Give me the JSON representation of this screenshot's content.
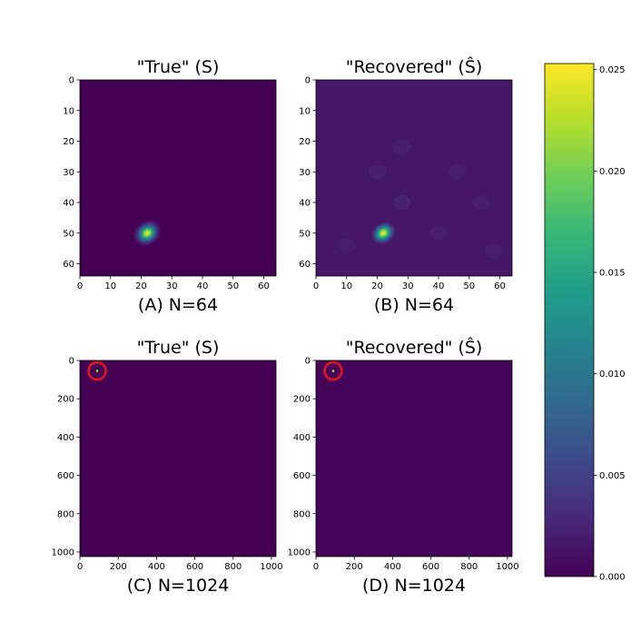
{
  "chart_data": [
    {
      "type": "heatmap",
      "title": "\"True\" (S)",
      "caption": "(A) N=64",
      "size": 64,
      "xticks": [
        0,
        10,
        20,
        30,
        40,
        50,
        60
      ],
      "yticks": [
        0,
        10,
        20,
        30,
        40,
        50,
        60
      ],
      "xlim": [
        0,
        64
      ],
      "ylim": [
        64,
        0
      ],
      "peak": {
        "x": 22,
        "y": 50,
        "value": 0.0253
      },
      "background_value": 0.0
    },
    {
      "type": "heatmap",
      "title": "\"Recovered\" (Ŝ)",
      "caption": "(B) N=64",
      "size": 64,
      "xticks": [
        0,
        10,
        20,
        30,
        40,
        50,
        60
      ],
      "yticks": [
        0,
        10,
        20,
        30,
        40,
        50,
        60
      ],
      "xlim": [
        0,
        64
      ],
      "ylim": [
        64,
        0
      ],
      "peak": {
        "x": 22,
        "y": 50,
        "value": 0.0253
      },
      "background_value": 0.0015
    },
    {
      "type": "heatmap",
      "title": "\"True\" (S)",
      "caption": "(C) N=1024",
      "size": 1024,
      "xticks": [
        0,
        200,
        400,
        600,
        800,
        1000
      ],
      "yticks": [
        0,
        200,
        400,
        600,
        800,
        1000
      ],
      "xlim": [
        0,
        1024
      ],
      "ylim": [
        1024,
        0
      ],
      "peak": {
        "x": 90,
        "y": 55,
        "value": 0.0253
      },
      "background_value": 0.0,
      "annotation": "red circle around peak"
    },
    {
      "type": "heatmap",
      "title": "\"Recovered\" (Ŝ)",
      "caption": "(D) N=1024",
      "size": 1024,
      "xticks": [
        0,
        200,
        400,
        600,
        800,
        1000
      ],
      "yticks": [
        0,
        200,
        400,
        600,
        800,
        1000
      ],
      "xlim": [
        0,
        1024
      ],
      "ylim": [
        1024,
        0
      ],
      "peak": {
        "x": 90,
        "y": 55,
        "value": 0.0253
      },
      "background_value": 0.0003,
      "annotation": "red circle around peak"
    }
  ],
  "colorbar": {
    "colormap": "viridis",
    "vmin": 0.0,
    "vmax": 0.0253,
    "ticks": [
      0.0,
      0.005,
      0.01,
      0.015,
      0.02,
      0.025
    ],
    "tick_labels": [
      "0.000",
      "0.005",
      "0.010",
      "0.015",
      "0.020",
      "0.025"
    ]
  },
  "colors": {
    "viridis": [
      "#440154",
      "#482878",
      "#3e4989",
      "#31688e",
      "#26828e",
      "#1f9e89",
      "#35b779",
      "#6ece58",
      "#b5de2b",
      "#fde725"
    ],
    "annotation_circle": "#e8141c"
  }
}
